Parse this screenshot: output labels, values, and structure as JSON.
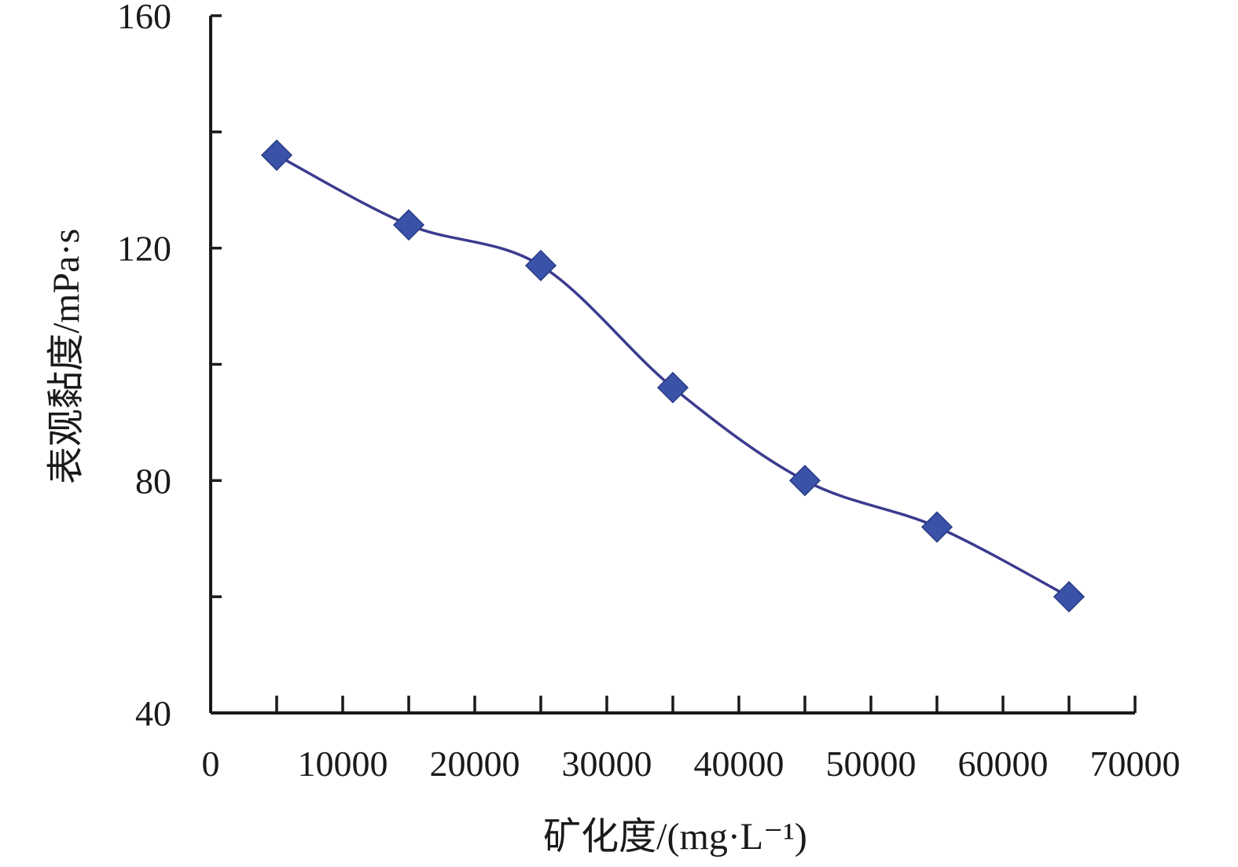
{
  "chart_data": {
    "type": "line",
    "title": "",
    "xlabel": "矿化度/(mg·L⁻¹)",
    "ylabel": "表观黏度/mPa·s",
    "xlim": [
      0,
      70000
    ],
    "ylim": [
      40,
      160
    ],
    "x_ticks": [
      0,
      10000,
      20000,
      30000,
      40000,
      50000,
      60000,
      70000
    ],
    "y_major_ticks": [
      40,
      80,
      120,
      160
    ],
    "y_minor_ticks": [
      60,
      100,
      140
    ],
    "grid": false,
    "smooth": true,
    "marker": "diamond",
    "colors": {
      "line": "#3b3b8f",
      "marker_fill": "#3a52a8",
      "marker_stroke": "#2a3c85"
    },
    "series": [
      {
        "x": [
          5000,
          15000,
          25000,
          35000,
          45000,
          55000,
          65000
        ],
        "y": [
          136,
          124,
          117,
          96,
          80,
          72,
          60
        ]
      }
    ]
  }
}
